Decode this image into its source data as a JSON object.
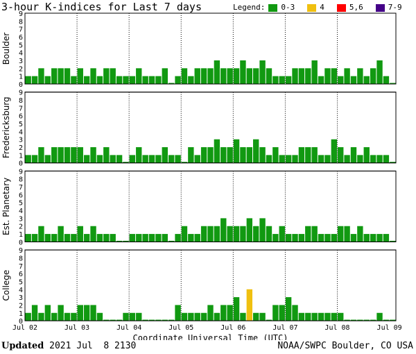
{
  "header": {
    "title": "3-hour K-indices for Last 7 days",
    "legend_label": "Legend:",
    "legend": [
      {
        "label": "0-3",
        "color": "#119911"
      },
      {
        "label": "4",
        "color": "#f0c010"
      },
      {
        "label": "5,6",
        "color": "#ff0000"
      },
      {
        "label": "7-9",
        "color": "#440088"
      }
    ]
  },
  "footer": {
    "updated_label": "Updated",
    "updated_value": "2021 Jul  8 2130",
    "credit": "NOAA/SWPC Boulder, CO USA"
  },
  "chart_data": [
    {
      "type": "bar",
      "station": "Boulder",
      "xlabel": "Coordinate Universal Time (UTC)",
      "ylim": [
        0,
        9
      ],
      "x_tick_labels": [
        "Jul 02",
        "Jul 03",
        "Jul 04",
        "Jul 05",
        "Jul 06",
        "Jul 07",
        "Jul 08",
        "Jul 09"
      ],
      "values": [
        1,
        1,
        2,
        1,
        2,
        2,
        2,
        1,
        2,
        1,
        2,
        1,
        2,
        2,
        1,
        1,
        1,
        2,
        1,
        1,
        1,
        2,
        0,
        1,
        2,
        1,
        2,
        2,
        2,
        3,
        2,
        2,
        2,
        3,
        2,
        2,
        3,
        2,
        1,
        1,
        1,
        2,
        2,
        2,
        3,
        1,
        2,
        2,
        1,
        2,
        1,
        2,
        1,
        2,
        3,
        1,
        0
      ]
    },
    {
      "type": "bar",
      "station": "Fredericksburg",
      "xlabel": "Coordinate Universal Time (UTC)",
      "ylim": [
        0,
        9
      ],
      "x_tick_labels": [
        "Jul 02",
        "Jul 03",
        "Jul 04",
        "Jul 05",
        "Jul 06",
        "Jul 07",
        "Jul 08",
        "Jul 09"
      ],
      "values": [
        1,
        1,
        2,
        1,
        2,
        2,
        2,
        2,
        2,
        1,
        2,
        1,
        2,
        1,
        1,
        0,
        1,
        2,
        1,
        1,
        1,
        2,
        1,
        1,
        0,
        2,
        1,
        2,
        2,
        3,
        2,
        2,
        3,
        2,
        2,
        3,
        2,
        1,
        2,
        1,
        1,
        1,
        2,
        2,
        2,
        1,
        1,
        3,
        2,
        1,
        2,
        1,
        2,
        1,
        1,
        1,
        0
      ]
    },
    {
      "type": "bar",
      "station": "Est. Planetary",
      "xlabel": "Coordinate Universal Time (UTC)",
      "ylim": [
        0,
        9
      ],
      "x_tick_labels": [
        "Jul 02",
        "Jul 03",
        "Jul 04",
        "Jul 05",
        "Jul 06",
        "Jul 07",
        "Jul 08",
        "Jul 09"
      ],
      "values": [
        1,
        1,
        2,
        1,
        1,
        2,
        1,
        1,
        2,
        1,
        2,
        1,
        1,
        1,
        0,
        0,
        1,
        1,
        1,
        1,
        1,
        1,
        0,
        1,
        2,
        1,
        1,
        2,
        2,
        2,
        3,
        2,
        2,
        2,
        3,
        2,
        3,
        2,
        1,
        2,
        1,
        1,
        1,
        2,
        2,
        1,
        1,
        1,
        2,
        2,
        1,
        2,
        1,
        1,
        1,
        1,
        0
      ]
    },
    {
      "type": "bar",
      "station": "College",
      "xlabel": "Coordinate Universal Time (UTC)",
      "ylim": [
        0,
        9
      ],
      "x_tick_labels": [
        "Jul 02",
        "Jul 03",
        "Jul 04",
        "Jul 05",
        "Jul 06",
        "Jul 07",
        "Jul 08",
        "Jul 09"
      ],
      "values": [
        1,
        2,
        1,
        2,
        1,
        2,
        1,
        1,
        2,
        2,
        2,
        1,
        0,
        0,
        0,
        1,
        1,
        1,
        0,
        0,
        0,
        0,
        0,
        2,
        1,
        1,
        1,
        1,
        2,
        1,
        2,
        2,
        3,
        1,
        4,
        1,
        1,
        0,
        2,
        2,
        3,
        2,
        1,
        1,
        1,
        1,
        1,
        1,
        1,
        0,
        0,
        0,
        0,
        0,
        1,
        0,
        0
      ]
    }
  ]
}
